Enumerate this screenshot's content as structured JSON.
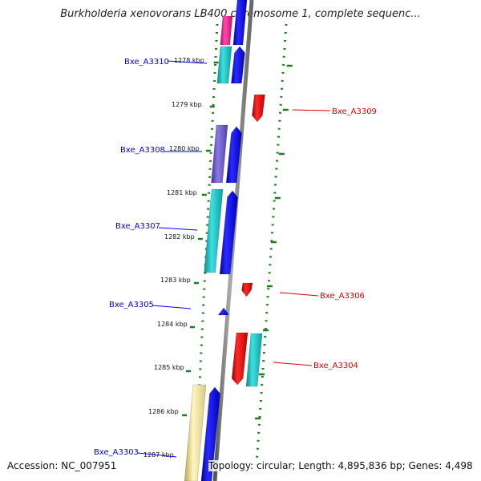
{
  "title": "Burkholderia xenovorans LB400 chromosome 1, complete sequenc...",
  "footer": {
    "accession": "Accession: NC_007951",
    "topology": "Topology: circular; Length: 4,895,836 bp; Genes: 4,498"
  },
  "colors": {
    "forward": "#0000ee",
    "reverse": "#e00000",
    "backbone": "#808080",
    "dotted_guide": "#1a7f1a"
  },
  "ticks": [
    "1278 kbp",
    "1279 kbp",
    "1280 kbp",
    "1281 kbp",
    "1282 kbp",
    "1283 kbp",
    "1284 kbp",
    "1285 kbp",
    "1286 kbp",
    "1287 kbp"
  ],
  "genes": [
    {
      "label": "Bxe_A3310",
      "strand": "forward",
      "color": "#0000ee"
    },
    {
      "label": "Bxe_A3309",
      "strand": "reverse",
      "color": "#e00000"
    },
    {
      "label": "Bxe_A3308",
      "strand": "forward",
      "color": "#0000ee"
    },
    {
      "label": "Bxe_A3307",
      "strand": "forward",
      "color": "#0000ee"
    },
    {
      "label": "Bxe_A3306",
      "strand": "reverse",
      "color": "#e00000"
    },
    {
      "label": "Bxe_A3305",
      "strand": "forward",
      "color": "#0000ee"
    },
    {
      "label": "Bxe_A3304",
      "strand": "reverse",
      "color": "#e00000"
    },
    {
      "label": "Bxe_A3303",
      "strand": "forward",
      "color": "#0000ee"
    }
  ]
}
